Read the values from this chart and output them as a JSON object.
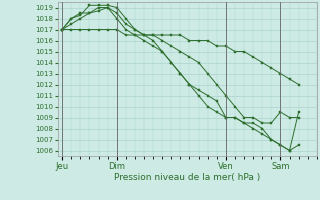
{
  "title": "Pression niveau de la mer( hPa )",
  "bg_color": "#cdeae4",
  "grid_color": "#aad4cc",
  "line_color": "#2d6e2d",
  "vline_color": "#666666",
  "ylim": [
    1005.5,
    1019.5
  ],
  "yticks": [
    1006,
    1007,
    1008,
    1009,
    1010,
    1011,
    1012,
    1013,
    1014,
    1015,
    1016,
    1017,
    1018,
    1019
  ],
  "xtick_labels": [
    "Jeu",
    "Dim",
    "Ven",
    "Sam"
  ],
  "xtick_positions": [
    0,
    36,
    108,
    144
  ],
  "vline_positions": [
    0,
    36,
    108,
    144
  ],
  "xlim": [
    -3,
    168
  ],
  "lines": [
    {
      "x": [
        0,
        6,
        12,
        18,
        24,
        30,
        36,
        42,
        48,
        54,
        60,
        66,
        72,
        78,
        84,
        90,
        96,
        102,
        108,
        114,
        120,
        126,
        132,
        138,
        144,
        150,
        156
      ],
      "y": [
        1017,
        1017,
        1017,
        1017,
        1017,
        1017,
        1017,
        1016.5,
        1016.5,
        1016.5,
        1016.5,
        1016.5,
        1016.5,
        1016.5,
        1016,
        1016,
        1016,
        1015.5,
        1015.5,
        1015,
        1015,
        1014.5,
        1014,
        1013.5,
        1013,
        1012.5,
        1012
      ]
    },
    {
      "x": [
        0,
        6,
        12,
        18,
        24,
        30,
        36,
        42,
        48,
        54,
        60,
        66,
        72,
        78,
        84,
        90,
        96,
        102,
        108,
        114,
        120,
        126,
        132,
        138,
        144,
        150,
        156
      ],
      "y": [
        1017,
        1017.5,
        1018,
        1018.5,
        1019,
        1019,
        1018.5,
        1017.5,
        1017,
        1016.5,
        1016.5,
        1016,
        1015.5,
        1015,
        1014.5,
        1014,
        1013,
        1012,
        1011,
        1010,
        1009,
        1009,
        1008.5,
        1008.5,
        1009.5,
        1009,
        1009
      ]
    },
    {
      "x": [
        0,
        6,
        12,
        18,
        24,
        30,
        36,
        42,
        48,
        54,
        60,
        66,
        72,
        78,
        84,
        90,
        96,
        102,
        108,
        114,
        120,
        126,
        132,
        138,
        144,
        150,
        156
      ],
      "y": [
        1017,
        1018,
        1018.5,
        1018.5,
        1018.7,
        1019,
        1018,
        1017,
        1016.5,
        1016,
        1015.5,
        1015,
        1014,
        1013,
        1012,
        1011,
        1010,
        1009.5,
        1009,
        1009,
        1008.5,
        1008,
        1007.5,
        1007,
        1006.5,
        1006,
        1009.5
      ]
    },
    {
      "x": [
        0,
        6,
        12,
        18,
        24,
        30,
        36,
        42,
        48,
        54,
        60,
        66,
        72,
        78,
        84,
        90,
        96,
        102,
        108,
        114,
        120,
        126,
        132,
        138,
        144,
        150,
        156
      ],
      "y": [
        1017,
        1018,
        1018.3,
        1019.2,
        1019.2,
        1019.2,
        1019,
        1018,
        1017,
        1016.5,
        1016,
        1015,
        1014,
        1013,
        1012,
        1011.5,
        1011,
        1010.5,
        1009,
        1009,
        1008.5,
        1008.5,
        1008,
        1007,
        1006.5,
        1006,
        1006.5
      ]
    }
  ]
}
